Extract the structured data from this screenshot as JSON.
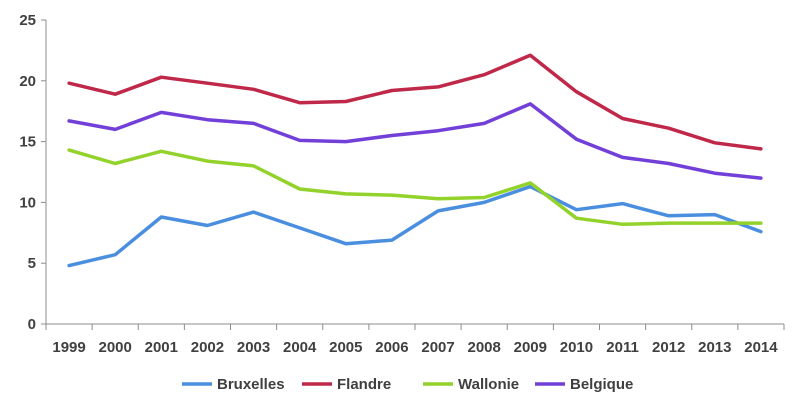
{
  "chart_data": {
    "type": "line",
    "x": [
      "1999",
      "2000",
      "2001",
      "2002",
      "2003",
      "2004",
      "2005",
      "2006",
      "2007",
      "2008",
      "2009",
      "2010",
      "2011",
      "2012",
      "2013",
      "2014"
    ],
    "ylim": [
      0,
      25
    ],
    "yticks": [
      0,
      5,
      10,
      15,
      20,
      25
    ],
    "legend_position": "bottom",
    "grid": false,
    "series": [
      {
        "name": "Bruxelles",
        "color": "#4a8ee0",
        "values": [
          4.8,
          5.7,
          8.8,
          8.1,
          9.2,
          7.9,
          6.6,
          6.9,
          9.3,
          10.0,
          11.3,
          9.4,
          9.9,
          8.9,
          9.0,
          7.6
        ]
      },
      {
        "name": "Flandre",
        "color": "#c0284a",
        "values": [
          19.8,
          18.9,
          20.3,
          19.8,
          19.3,
          18.2,
          18.3,
          19.2,
          19.5,
          20.5,
          22.1,
          19.1,
          16.9,
          16.1,
          14.9,
          14.4
        ]
      },
      {
        "name": "Wallonie",
        "color": "#92d22b",
        "values": [
          14.3,
          13.2,
          14.2,
          13.4,
          13.0,
          11.1,
          10.7,
          10.6,
          10.3,
          10.4,
          11.6,
          8.7,
          8.2,
          8.3,
          8.3,
          8.3
        ]
      },
      {
        "name": "Belgique",
        "color": "#7240d8",
        "values": [
          16.7,
          16.0,
          17.4,
          16.8,
          16.5,
          15.1,
          15.0,
          15.5,
          15.9,
          16.5,
          18.1,
          15.2,
          13.7,
          13.2,
          12.4,
          12.0
        ]
      }
    ]
  }
}
